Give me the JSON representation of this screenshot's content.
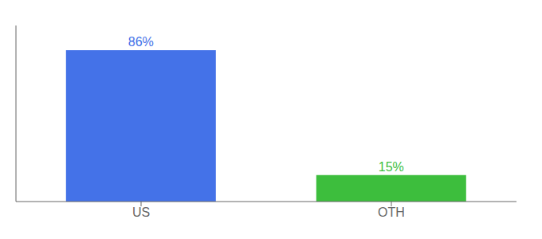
{
  "chart_data": {
    "type": "bar",
    "categories": [
      "US",
      "OTH"
    ],
    "values": [
      86,
      15
    ],
    "value_labels": [
      "86%",
      "15%"
    ],
    "colors": [
      "#4472e8",
      "#3dbe3d"
    ],
    "ylim": [
      0,
      100
    ],
    "data_labels": true,
    "tick_labels": "x"
  }
}
